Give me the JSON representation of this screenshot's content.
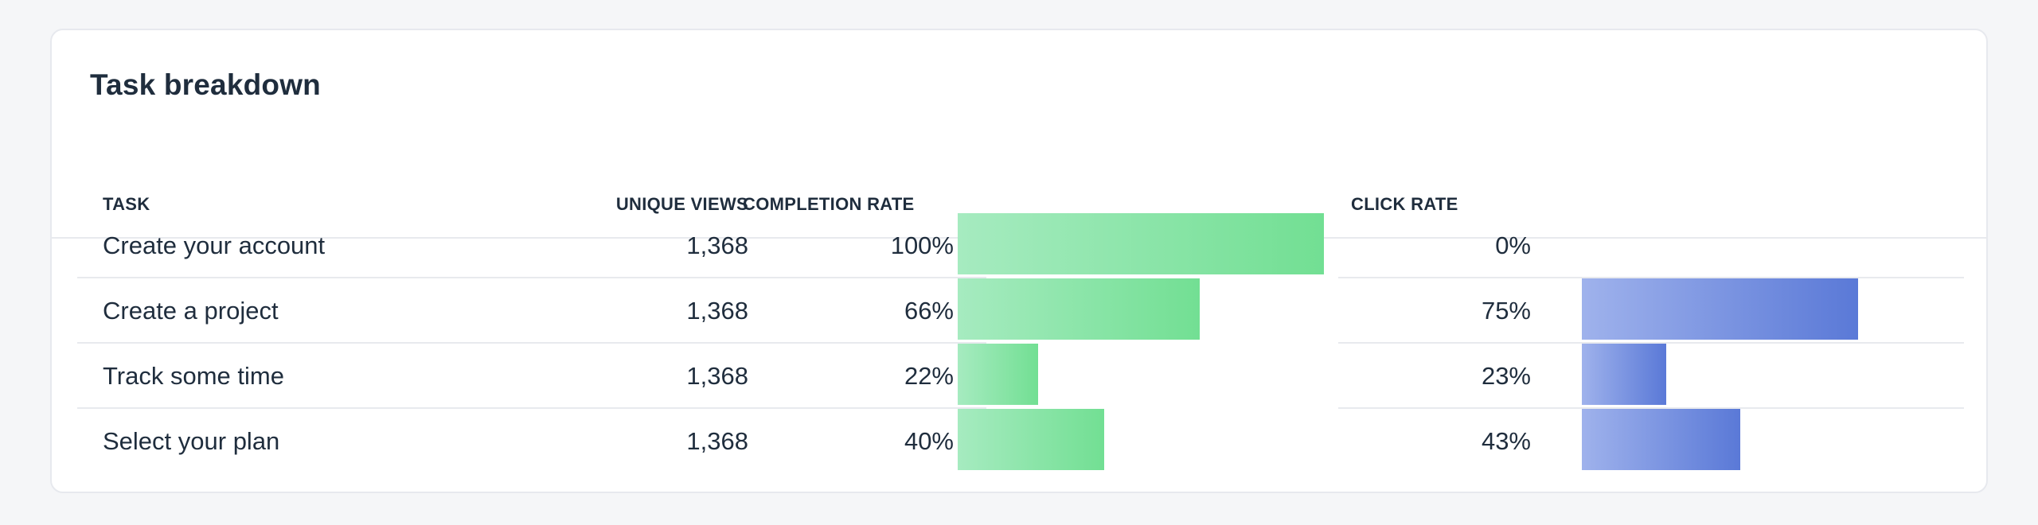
{
  "card": {
    "title": "Task breakdown"
  },
  "table": {
    "columns": {
      "task": "TASK",
      "unique_views": "UNIQUE VIEWS",
      "completion_rate": "COMPLETION RATE",
      "click_rate": "CLICK RATE"
    },
    "rows": [
      {
        "task": "Create your account",
        "unique_views": "1,368",
        "completion_rate": "100%",
        "completion_value": 100,
        "click_rate": "0%",
        "click_value": 0
      },
      {
        "task": "Create a project",
        "unique_views": "1,368",
        "completion_rate": "66%",
        "completion_value": 66,
        "click_rate": "75%",
        "click_value": 75
      },
      {
        "task": "Track some time",
        "unique_views": "1,368",
        "completion_rate": "22%",
        "completion_value": 22,
        "click_rate": "23%",
        "click_value": 23
      },
      {
        "task": "Select your plan",
        "unique_views": "1,368",
        "completion_rate": "40%",
        "completion_value": 40,
        "click_rate": "43%",
        "click_value": 43
      }
    ]
  },
  "colors": {
    "completion_bar_start": "#a6ebc0",
    "completion_bar_end": "#72df93",
    "click_bar_start": "#9fb2ec",
    "click_bar_end": "#5a79d7"
  }
}
